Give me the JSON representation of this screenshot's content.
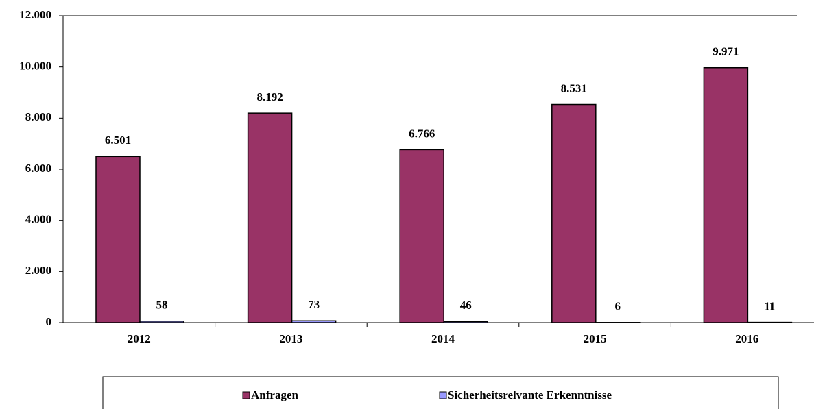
{
  "chart_data": {
    "type": "bar",
    "categories": [
      "2012",
      "2013",
      "2014",
      "2015",
      "2016"
    ],
    "series": [
      {
        "name": "Anfragen",
        "color": "#993366",
        "values": [
          6501,
          8192,
          6766,
          8531,
          9971
        ],
        "value_labels": [
          "6.501",
          "8.192",
          "6.766",
          "8.531",
          "9.971"
        ]
      },
      {
        "name": "Sicherheitsrelvante Erkenntnisse",
        "color": "#9999ff",
        "values": [
          58,
          73,
          46,
          6,
          11
        ]
      }
    ],
    "ylim": [
      0,
      12000
    ],
    "yticks": [
      0,
      {
        "value": 2000,
        "label": "2.000"
      },
      {
        "value": 4000,
        "label": "4.000"
      },
      {
        "value": 6000,
        "label": "6.000"
      },
      {
        "value": 8000,
        "label": "8.000"
      },
      {
        "value": 10000,
        "label": "10.000"
      },
      {
        "value": 12000,
        "label": "12.000"
      }
    ],
    "grid": false,
    "legend": "bottom"
  }
}
